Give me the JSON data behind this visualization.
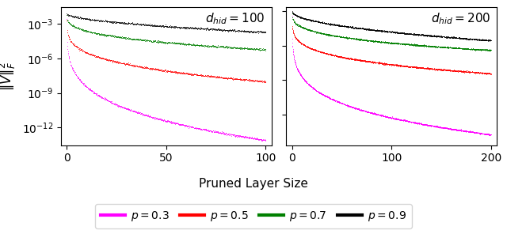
{
  "d_hid_values": [
    100,
    200
  ],
  "p_values": [
    0.3,
    0.5,
    0.7,
    0.9
  ],
  "colors": [
    "magenta",
    "red",
    "green",
    "black"
  ],
  "ylabel": "$\\|V\\|_F^2$",
  "xlabel": "Pruned Layer Size",
  "linewidth": 2.0,
  "left": {
    "ylim": [
      3e-14,
      0.03
    ],
    "yticks": [
      1e-12,
      1e-09,
      1e-06,
      0.001
    ],
    "xlim": [
      -3,
      103
    ],
    "xticks": [
      0,
      50,
      100
    ],
    "start_vals": {
      "0.3": 0.003,
      "0.5": 0.002,
      "0.7": 0.005,
      "0.9": 0.008
    },
    "end_vals": {
      "0.3": 8e-14,
      "0.5": 1e-08,
      "0.7": 6e-06,
      "0.9": 0.0002
    },
    "curve_exp": {
      "0.3": 0.25,
      "0.5": 0.28,
      "0.7": 0.35,
      "0.9": 0.55
    }
  },
  "right": {
    "ylim": [
      3e-17,
      0.3
    ],
    "yticks": [
      1e-13,
      1e-09,
      1e-05,
      0.1
    ],
    "xlim": [
      -6,
      206
    ],
    "xticks": [
      0,
      100,
      200
    ],
    "start_vals": {
      "0.3": 0.03,
      "0.5": 0.02,
      "0.7": 0.06,
      "0.9": 0.1
    },
    "end_vals": {
      "0.3": 5e-16,
      "0.5": 6e-09,
      "0.7": 3e-06,
      "0.9": 4e-05
    },
    "curve_exp": {
      "0.3": 0.22,
      "0.5": 0.25,
      "0.7": 0.32,
      "0.9": 0.5
    }
  },
  "annotation_fontsize": 11,
  "axis_fontsize": 10,
  "legend_fontsize": 10
}
